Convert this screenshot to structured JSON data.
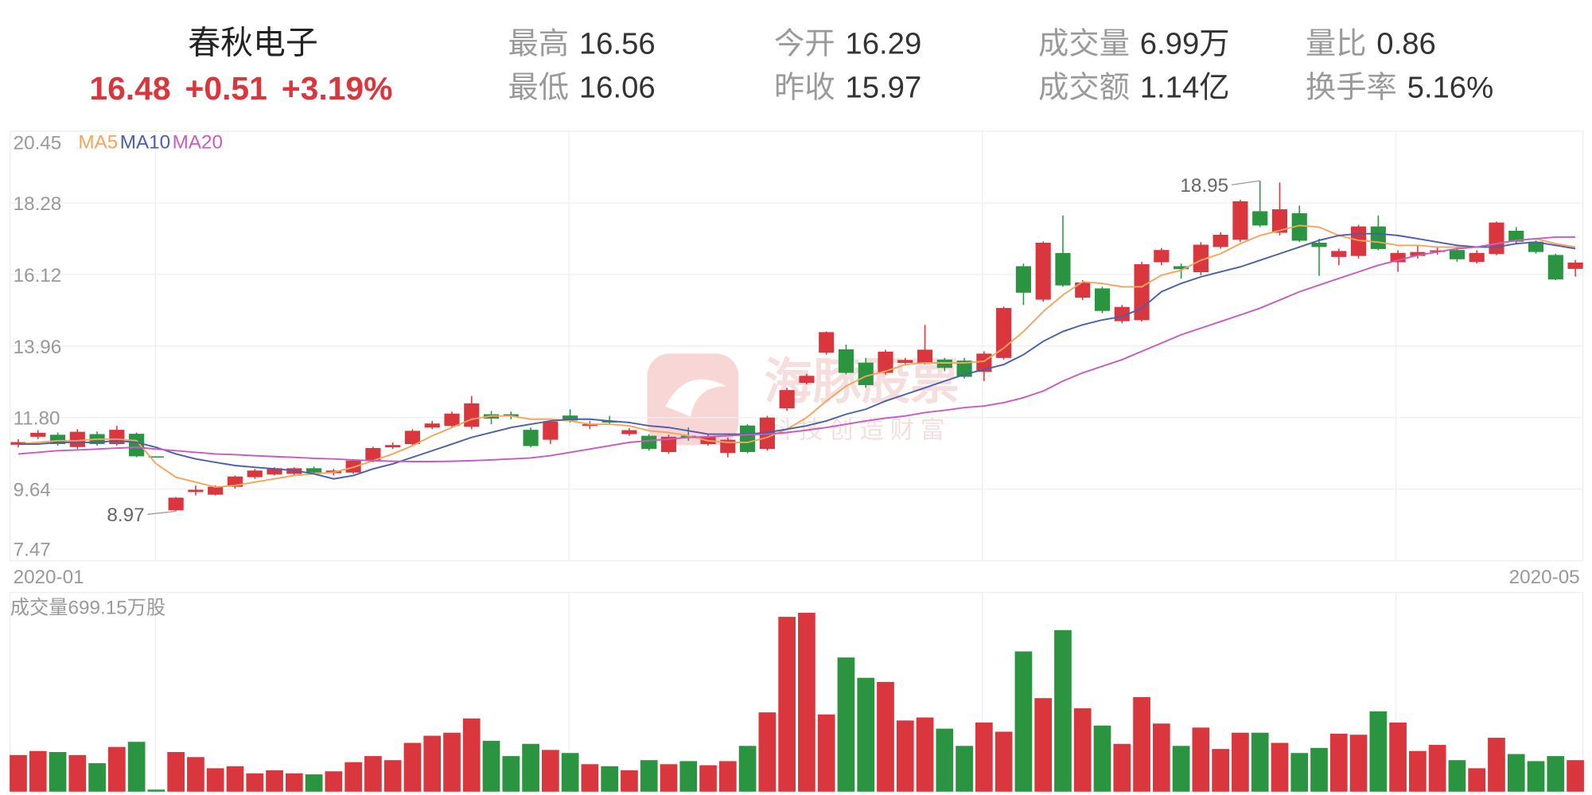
{
  "quote": {
    "name": "春秋电子",
    "price": 16.48,
    "change": "+0.51",
    "change_pct": "+3.19%",
    "stats": [
      {
        "label": "最高",
        "value": 16.56
      },
      {
        "label": "最低",
        "value": 16.06
      },
      {
        "label": "今开",
        "value": 16.29
      },
      {
        "label": "昨收",
        "value": 15.97
      },
      {
        "label": "成交量",
        "value": "6.99万"
      },
      {
        "label": "成交额",
        "value": "1.14亿"
      },
      {
        "label": "量比",
        "value": 0.86
      },
      {
        "label": "换手率",
        "value": "5.16%"
      }
    ]
  },
  "watermark": {
    "title": "海豚股票",
    "slogan": "科技创造财富"
  },
  "chart_data": {
    "type": "candlestick",
    "x_labels": [
      "2020-01",
      "2020-05"
    ],
    "ylim": [
      7.47,
      20.45
    ],
    "yticks": [
      20.45,
      18.28,
      16.12,
      13.96,
      {
        "value": 11.8,
        "label": "11.80"
      },
      9.64,
      7.47
    ],
    "grid": true,
    "up_color": "#d9363e",
    "down_color": "#2a9440",
    "open": [
      10.98,
      11.22,
      11.28,
      10.91,
      11.3,
      11.0,
      11.31,
      10.63,
      9.0,
      9.55,
      9.47,
      9.71,
      10.0,
      10.08,
      10.1,
      10.27,
      10.12,
      10.14,
      10.5,
      10.9,
      11.0,
      11.5,
      11.55,
      11.52,
      11.9,
      11.9,
      11.43,
      11.13,
      11.86,
      11.55,
      11.7,
      11.3,
      11.25,
      10.76,
      11.25,
      11.0,
      10.73,
      11.56,
      10.85,
      12.08,
      12.85,
      13.76,
      13.86,
      13.46,
      13.15,
      13.45,
      13.45,
      13.55,
      13.52,
      13.18,
      13.6,
      16.37,
      15.36,
      16.77,
      15.42,
      15.7,
      14.71,
      14.74,
      16.49,
      16.37,
      16.19,
      16.95,
      17.17,
      18.03,
      17.38,
      17.97,
      17.08,
      16.65,
      16.68,
      17.57,
      16.49,
      16.68,
      16.8,
      16.86,
      16.5,
      16.74,
      17.44,
      17.11,
      16.71,
      16.29
    ],
    "close": [
      11.06,
      11.34,
      11.0,
      11.37,
      11.0,
      11.43,
      10.63,
      10.63,
      9.38,
      9.62,
      9.71,
      10.02,
      10.2,
      10.27,
      10.27,
      10.14,
      10.2,
      10.5,
      10.88,
      10.97,
      11.4,
      11.62,
      11.92,
      12.23,
      11.77,
      11.83,
      10.94,
      11.68,
      11.71,
      11.6,
      11.65,
      11.42,
      10.85,
      11.22,
      11.18,
      11.22,
      11.13,
      10.76,
      11.8,
      12.63,
      13.06,
      14.38,
      13.15,
      12.78,
      13.79,
      13.54,
      13.85,
      13.3,
      13.03,
      13.73,
      15.11,
      15.57,
      17.08,
      15.79,
      15.88,
      15.02,
      15.14,
      16.43,
      16.86,
      16.28,
      17.02,
      17.32,
      18.33,
      17.6,
      18.09,
      17.14,
      16.95,
      16.83,
      17.57,
      16.89,
      16.77,
      16.8,
      16.85,
      16.58,
      16.77,
      17.69,
      17.11,
      16.8,
      15.97,
      16.48
    ],
    "high": [
      11.15,
      11.42,
      11.35,
      11.45,
      11.38,
      11.55,
      11.35,
      10.63,
      9.4,
      9.75,
      9.75,
      10.05,
      10.25,
      10.3,
      10.3,
      10.32,
      10.25,
      10.55,
      10.92,
      11.05,
      11.45,
      11.7,
      11.98,
      12.45,
      12.0,
      11.98,
      11.5,
      11.72,
      12.05,
      11.7,
      11.85,
      11.48,
      11.3,
      11.28,
      11.5,
      11.3,
      11.2,
      11.6,
      11.85,
      12.7,
      13.12,
      14.4,
      14.0,
      13.6,
      13.85,
      13.6,
      14.6,
      13.6,
      13.6,
      13.8,
      15.15,
      16.45,
      17.12,
      17.9,
      15.95,
      15.75,
      15.2,
      16.5,
      16.92,
      16.45,
      17.1,
      17.4,
      18.38,
      18.95,
      18.9,
      18.2,
      17.2,
      16.9,
      17.62,
      17.9,
      16.85,
      17.0,
      16.95,
      16.95,
      16.85,
      17.72,
      17.55,
      17.15,
      16.75,
      16.56
    ],
    "low": [
      10.9,
      11.15,
      10.95,
      10.85,
      10.95,
      10.95,
      10.6,
      10.63,
      8.97,
      9.45,
      9.45,
      9.65,
      9.95,
      10.05,
      10.05,
      10.1,
      10.05,
      10.1,
      10.45,
      10.85,
      10.95,
      11.45,
      11.5,
      11.45,
      11.6,
      11.75,
      10.9,
      11.0,
      11.65,
      11.45,
      11.6,
      11.25,
      10.8,
      10.7,
      11.1,
      10.95,
      10.6,
      10.72,
      10.8,
      12.0,
      12.8,
      13.7,
      13.1,
      12.7,
      13.1,
      13.4,
      13.4,
      13.2,
      12.98,
      12.9,
      13.55,
      15.2,
      15.3,
      15.75,
      15.35,
      14.95,
      14.65,
      14.7,
      16.4,
      16.0,
      16.1,
      16.9,
      17.1,
      17.55,
      17.3,
      17.1,
      16.08,
      16.4,
      16.6,
      16.85,
      16.2,
      16.6,
      16.72,
      16.5,
      16.45,
      16.7,
      17.05,
      16.75,
      15.95,
      16.06
    ],
    "annotations": [
      18.95,
      8.97
    ],
    "series": [
      {
        "name": "MA5",
        "color": "#f5a55b",
        "values": [
          11.0,
          11.05,
          11.1,
          11.1,
          11.15,
          11.15,
          11.1,
          10.4,
          10.0,
          9.85,
          9.7,
          9.75,
          9.85,
          9.95,
          10.05,
          10.1,
          10.15,
          10.3,
          10.5,
          10.7,
          10.95,
          11.25,
          11.5,
          11.75,
          11.85,
          11.85,
          11.75,
          11.75,
          11.7,
          11.6,
          11.6,
          11.55,
          11.4,
          11.35,
          11.25,
          11.1,
          11.05,
          11.05,
          11.2,
          11.45,
          11.8,
          12.3,
          12.75,
          13.05,
          13.2,
          13.4,
          13.45,
          13.45,
          13.45,
          13.5,
          13.9,
          14.4,
          15.0,
          15.5,
          15.9,
          15.85,
          15.75,
          15.75,
          16.1,
          16.25,
          16.55,
          16.75,
          17.05,
          17.3,
          17.45,
          17.6,
          17.55,
          17.3,
          17.15,
          17.1,
          17.0,
          17.0,
          16.95,
          16.95,
          16.95,
          17.05,
          17.15,
          17.2,
          17.05,
          16.95
        ]
      },
      {
        "name": "MA10",
        "color": "#4a5fad",
        "values": [
          11.0,
          11.0,
          11.05,
          11.05,
          11.05,
          11.1,
          11.05,
          10.9,
          10.7,
          10.55,
          10.45,
          10.35,
          10.3,
          10.25,
          10.2,
          10.1,
          9.95,
          10.05,
          10.25,
          10.4,
          10.6,
          10.8,
          11.0,
          11.2,
          11.35,
          11.5,
          11.6,
          11.7,
          11.75,
          11.75,
          11.7,
          11.65,
          11.55,
          11.5,
          11.4,
          11.3,
          11.3,
          11.3,
          11.35,
          11.45,
          11.55,
          11.7,
          11.9,
          12.05,
          12.3,
          12.5,
          12.7,
          12.9,
          13.1,
          13.25,
          13.4,
          13.7,
          14.1,
          14.4,
          14.6,
          14.75,
          14.85,
          15.1,
          15.6,
          15.85,
          16.05,
          16.2,
          16.35,
          16.55,
          16.75,
          16.95,
          17.15,
          17.3,
          17.35,
          17.35,
          17.3,
          17.2,
          17.1,
          17.0,
          16.95,
          16.95,
          17.05,
          17.1,
          17.0,
          16.9
        ]
      },
      {
        "name": "MA20",
        "color": "#c85bc0",
        "values": [
          10.7,
          10.75,
          10.8,
          10.82,
          10.85,
          10.88,
          10.9,
          10.85,
          10.8,
          10.75,
          10.7,
          10.68,
          10.65,
          10.62,
          10.6,
          10.57,
          10.55,
          10.52,
          10.5,
          10.48,
          10.47,
          10.47,
          10.48,
          10.5,
          10.52,
          10.55,
          10.58,
          10.65,
          10.75,
          10.85,
          10.95,
          11.05,
          11.1,
          11.15,
          11.2,
          11.22,
          11.25,
          11.28,
          11.3,
          11.35,
          11.42,
          11.5,
          11.6,
          11.7,
          11.78,
          11.85,
          11.95,
          12.02,
          12.1,
          12.15,
          12.25,
          12.4,
          12.6,
          12.9,
          13.15,
          13.35,
          13.55,
          13.8,
          14.05,
          14.3,
          14.5,
          14.7,
          14.9,
          15.1,
          15.35,
          15.6,
          15.8,
          16.0,
          16.2,
          16.4,
          16.55,
          16.7,
          16.8,
          16.9,
          16.95,
          17.05,
          17.15,
          17.2,
          17.25,
          17.25
        ]
      }
    ],
    "volume_label": "成交量699.15万股",
    "volume": [
      812,
      902,
      879,
      812,
      631,
      992,
      1105,
      45,
      879,
      767,
      519,
      564,
      406,
      474,
      406,
      383,
      451,
      654,
      789,
      699,
      1082,
      1240,
      1308,
      1624,
      1128,
      789,
      1060,
      925,
      857,
      609,
      564,
      474,
      699,
      609,
      677,
      586,
      677,
      1015,
      1759,
      3879,
      3969,
      1714,
      2977,
      2526,
      2435,
      1579,
      1646,
      1398,
      1015,
      1533,
      1330,
      3112,
      2075,
      3585,
      1849,
      1466,
      1060,
      2097,
      1511,
      1015,
      1421,
      947,
      1308,
      1308,
      1082,
      857,
      970,
      1285,
      1263,
      1782,
      1533,
      902,
      1037,
      699,
      519,
      1195,
      834,
      677,
      789,
      699.15
    ]
  }
}
